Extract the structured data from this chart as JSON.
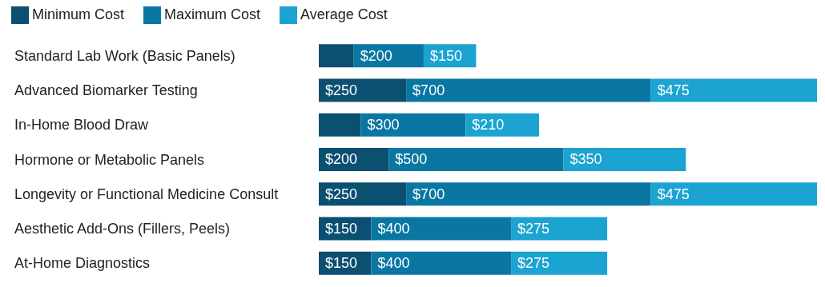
{
  "chart_data": {
    "type": "bar",
    "orientation": "horizontal",
    "stacked": true,
    "legend": "top left",
    "categories": [
      "Standard Lab Work (Basic Panels)",
      "Advanced Biomarker Testing",
      "In-Home Blood Draw",
      "Hormone or Metabolic Panels",
      "Longevity or Functional Medicine Consult",
      "Aesthetic Add-Ons (Fillers, Peels)",
      "At-Home Diagnostics"
    ],
    "series": [
      {
        "name": "Minimum Cost",
        "color": "#0b4f71",
        "values": [
          100,
          250,
          120,
          200,
          250,
          150,
          150
        ],
        "value_labels": [
          null,
          "$250",
          null,
          "$200",
          "$250",
          "$150",
          "$150"
        ]
      },
      {
        "name": "Maximum Cost",
        "color": "#0a77a3",
        "values": [
          200,
          700,
          300,
          500,
          700,
          400,
          400
        ],
        "value_labels": [
          "$200",
          "$700",
          "$300",
          "$500",
          "$700",
          "$400",
          "$400"
        ]
      },
      {
        "name": "Average Cost",
        "color": "#1ba3d1",
        "values": [
          150,
          475,
          210,
          350,
          475,
          275,
          275
        ],
        "value_labels": [
          "$150",
          "$475",
          "$210",
          "$350",
          "$475",
          "$275",
          "$275"
        ]
      }
    ]
  }
}
